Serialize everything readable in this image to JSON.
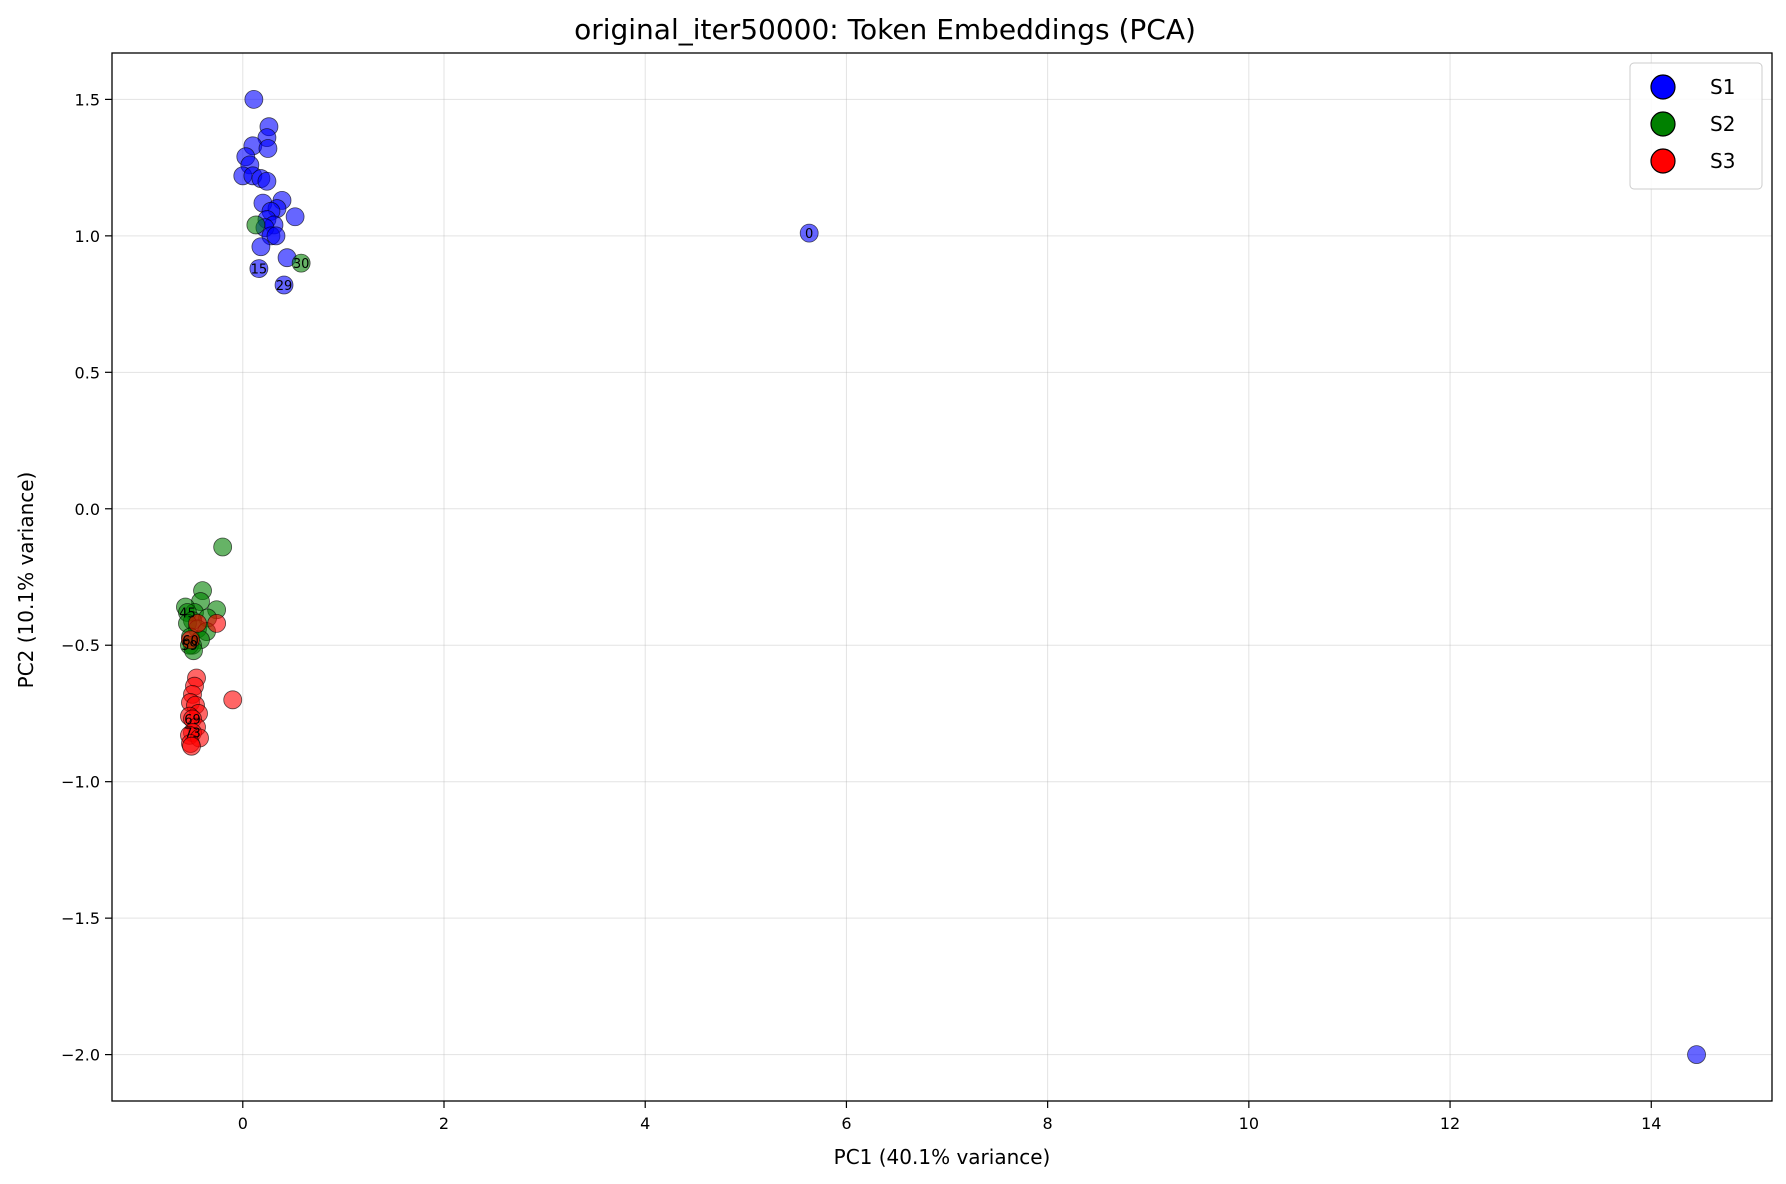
{
  "chart_data": {
    "type": "scatter",
    "title": "original_iter50000: Token Embeddings (PCA)",
    "xlabel": "PC1 (40.1% variance)",
    "ylabel": "PC2 (10.1% variance)",
    "xlim": [
      -1.3,
      15.2
    ],
    "ylim": [
      -2.17,
      1.67
    ],
    "xticks": [
      0,
      2,
      4,
      6,
      8,
      10,
      12,
      14
    ],
    "yticks": [
      -2.0,
      -1.5,
      -1.0,
      -0.5,
      0.0,
      0.5,
      1.0,
      1.5
    ],
    "grid": true,
    "legend_position": "top-right",
    "series": [
      {
        "name": "S1",
        "color": "#0000ff",
        "points": [
          {
            "x": 5.63,
            "y": 1.01,
            "label": "0"
          },
          {
            "x": 14.45,
            "y": -2.0
          },
          {
            "x": 0.11,
            "y": 1.5
          },
          {
            "x": 0.26,
            "y": 1.4
          },
          {
            "x": 0.24,
            "y": 1.36
          },
          {
            "x": 0.1,
            "y": 1.33
          },
          {
            "x": 0.25,
            "y": 1.32
          },
          {
            "x": 0.03,
            "y": 1.29
          },
          {
            "x": 0.07,
            "y": 1.26
          },
          {
            "x": 0.0,
            "y": 1.22
          },
          {
            "x": 0.1,
            "y": 1.22
          },
          {
            "x": 0.18,
            "y": 1.21
          },
          {
            "x": 0.24,
            "y": 1.2
          },
          {
            "x": 0.39,
            "y": 1.13
          },
          {
            "x": 0.2,
            "y": 1.12
          },
          {
            "x": 0.34,
            "y": 1.1
          },
          {
            "x": 0.28,
            "y": 1.09
          },
          {
            "x": 0.52,
            "y": 1.07
          },
          {
            "x": 0.24,
            "y": 1.06
          },
          {
            "x": 0.31,
            "y": 1.04
          },
          {
            "x": 0.22,
            "y": 1.03
          },
          {
            "x": 0.28,
            "y": 1.0
          },
          {
            "x": 0.33,
            "y": 1.0
          },
          {
            "x": 0.18,
            "y": 0.96
          },
          {
            "x": 0.44,
            "y": 0.92
          },
          {
            "x": 0.16,
            "y": 0.88,
            "label": "15"
          },
          {
            "x": 0.41,
            "y": 0.82,
            "label": "29"
          }
        ]
      },
      {
        "name": "S2",
        "color": "#008000",
        "points": [
          {
            "x": 0.13,
            "y": 1.04
          },
          {
            "x": 0.58,
            "y": 0.9,
            "label": "30"
          },
          {
            "x": -0.2,
            "y": -0.14
          },
          {
            "x": -0.4,
            "y": -0.3
          },
          {
            "x": -0.42,
            "y": -0.34
          },
          {
            "x": -0.57,
            "y": -0.36
          },
          {
            "x": -0.26,
            "y": -0.37
          },
          {
            "x": -0.48,
            "y": -0.38
          },
          {
            "x": -0.55,
            "y": -0.38,
            "label": "45"
          },
          {
            "x": -0.35,
            "y": -0.4
          },
          {
            "x": -0.5,
            "y": -0.41
          },
          {
            "x": -0.55,
            "y": -0.42
          },
          {
            "x": -0.45,
            "y": -0.44
          },
          {
            "x": -0.36,
            "y": -0.45
          },
          {
            "x": -0.52,
            "y": -0.47
          },
          {
            "x": -0.42,
            "y": -0.48
          },
          {
            "x": -0.5,
            "y": -0.5
          },
          {
            "x": -0.53,
            "y": -0.5,
            "label": "59"
          },
          {
            "x": -0.49,
            "y": -0.52
          }
        ]
      },
      {
        "name": "S3",
        "color": "#ff0000",
        "points": [
          {
            "x": -0.26,
            "y": -0.42
          },
          {
            "x": -0.45,
            "y": -0.42
          },
          {
            "x": -0.52,
            "y": -0.48,
            "label": "60"
          },
          {
            "x": -0.46,
            "y": -0.62
          },
          {
            "x": -0.48,
            "y": -0.65
          },
          {
            "x": -0.5,
            "y": -0.68
          },
          {
            "x": -0.1,
            "y": -0.7
          },
          {
            "x": -0.52,
            "y": -0.71
          },
          {
            "x": -0.47,
            "y": -0.72
          },
          {
            "x": -0.44,
            "y": -0.75
          },
          {
            "x": -0.53,
            "y": -0.76
          },
          {
            "x": -0.5,
            "y": -0.77,
            "label": "69"
          },
          {
            "x": -0.46,
            "y": -0.8
          },
          {
            "x": -0.5,
            "y": -0.82,
            "label": "73"
          },
          {
            "x": -0.53,
            "y": -0.83
          },
          {
            "x": -0.43,
            "y": -0.84
          },
          {
            "x": -0.52,
            "y": -0.86
          },
          {
            "x": -0.51,
            "y": -0.87
          }
        ]
      }
    ]
  }
}
